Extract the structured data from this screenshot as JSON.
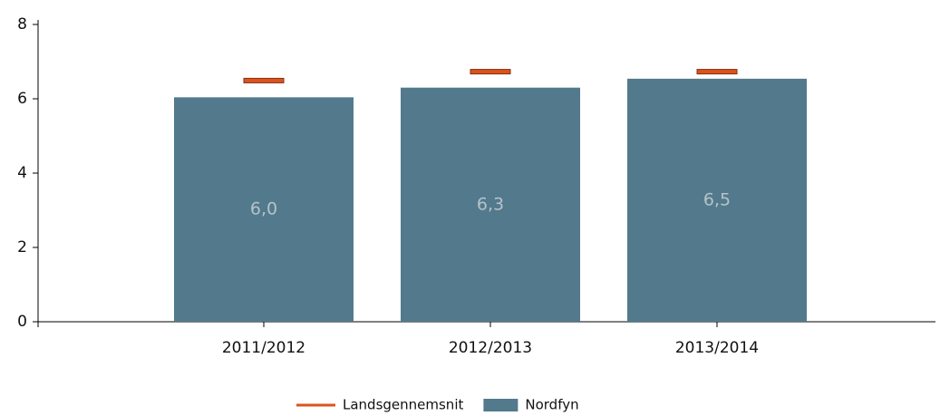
{
  "chart_data": {
    "type": "bar",
    "categories": [
      "2011/2012",
      "2012/2013",
      "2013/2014"
    ],
    "series": [
      {
        "name": "Nordfyn",
        "type": "bar",
        "color": "#527a8c",
        "values": [
          6.04,
          6.3,
          6.54
        ],
        "value_labels": [
          "6,0",
          "6,3",
          "6,5"
        ]
      },
      {
        "name": "Landsgennemsnit",
        "type": "marker",
        "color": "#d9541e",
        "values": [
          6.49,
          6.73,
          6.73
        ]
      }
    ],
    "ylim": [
      0,
      8
    ],
    "yticks": [
      0,
      2,
      4,
      6,
      8
    ],
    "grid": false,
    "legend": "bottom"
  }
}
